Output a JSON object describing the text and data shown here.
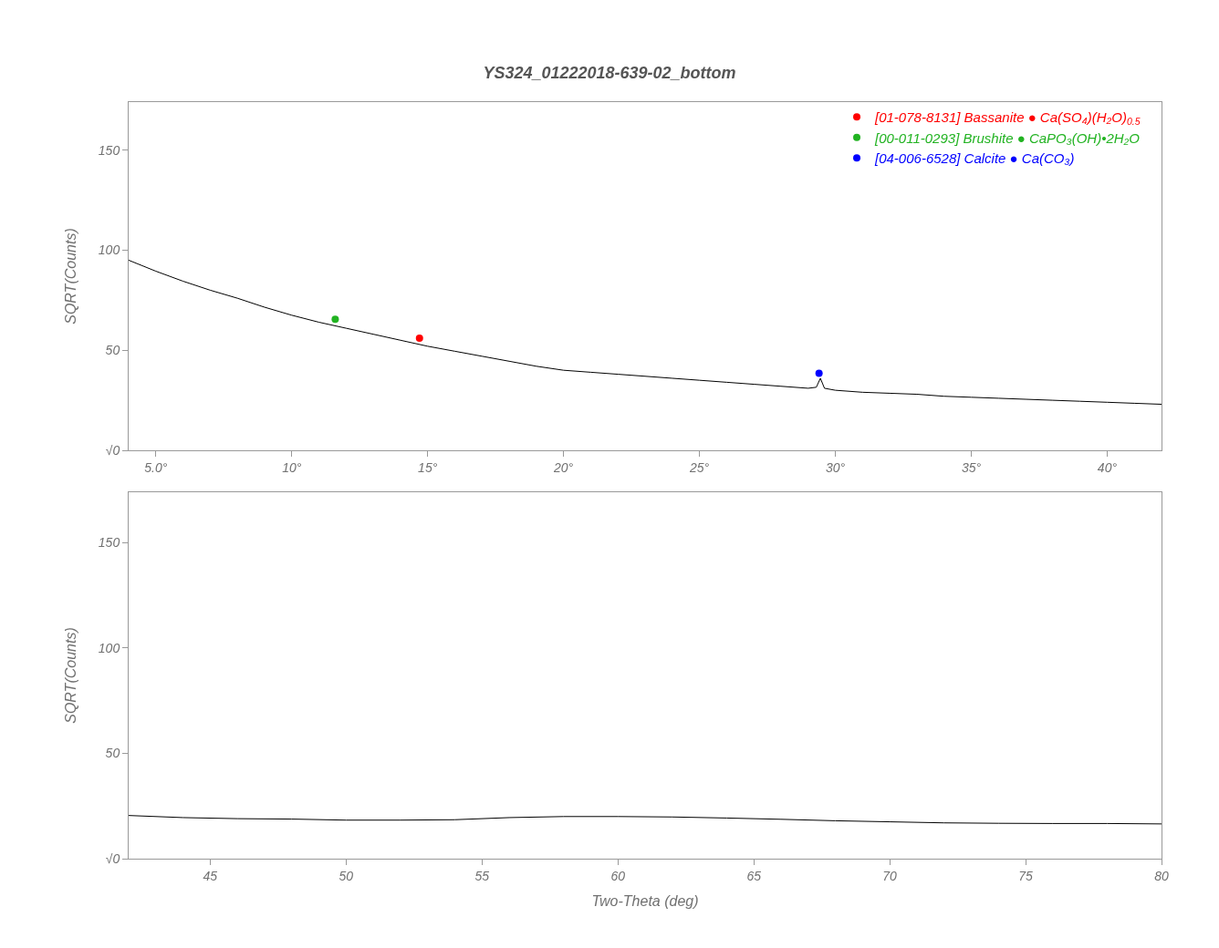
{
  "chart_data": [
    {
      "type": "line",
      "title": "YS324_01222018-639-02_bottom",
      "ylabel": "SQRT(Counts)",
      "xlim": [
        4,
        42
      ],
      "ylim": [
        0,
        174
      ],
      "xticks": [
        {
          "value": 5,
          "label": "5.0°"
        },
        {
          "value": 10,
          "label": "10°"
        },
        {
          "value": 15,
          "label": "15°"
        },
        {
          "value": 20,
          "label": "20°"
        },
        {
          "value": 25,
          "label": "25°"
        },
        {
          "value": 30,
          "label": "30°"
        },
        {
          "value": 35,
          "label": "35°"
        },
        {
          "value": 40,
          "label": "40°"
        }
      ],
      "yticks": [
        {
          "value": 0,
          "label": "√0"
        },
        50,
        100,
        150
      ],
      "legend": "top right",
      "series": [
        {
          "color": "#000000",
          "marker": "none",
          "x": [
            4,
            5,
            6,
            7,
            8,
            9,
            10,
            11,
            12,
            13,
            14,
            15,
            16,
            17,
            18,
            19,
            20,
            21,
            22,
            23,
            24,
            25,
            26,
            27,
            28,
            29,
            29.3,
            29.45,
            29.6,
            30,
            31,
            32,
            33,
            34,
            35,
            36,
            37,
            38,
            39,
            40,
            41,
            42
          ],
          "values": [
            95,
            89.5,
            84.5,
            80,
            76,
            71.5,
            67.5,
            64,
            61,
            58,
            55,
            52,
            49.5,
            47,
            44.5,
            42,
            40,
            39,
            38,
            37,
            36,
            35,
            34,
            33,
            32,
            31,
            31.5,
            36,
            31,
            30,
            29,
            28.5,
            28,
            27,
            26.5,
            26,
            25.5,
            25,
            24.5,
            24,
            23.5,
            23
          ]
        },
        {
          "type": "scatter",
          "name": "[01-078-8131] Bassanite ● Ca(SO₄)(H₂O)$_{0.5}$",
          "color": "#ff0000",
          "marker": "circle",
          "x": [
            14.7
          ],
          "values": [
            56
          ]
        },
        {
          "type": "scatter",
          "name": "[00-011-0293] Brushite ● CaPO₃(OH)•2H₂O",
          "color": "#22b322",
          "marker": "circle",
          "x": [
            11.6
          ],
          "values": [
            65.5
          ]
        },
        {
          "type": "scatter",
          "name": "[04-006-6528] Calcite ● Ca(CO₃)",
          "color": "#0000ff",
          "marker": "circle",
          "x": [
            29.4
          ],
          "values": [
            38.5
          ]
        }
      ]
    },
    {
      "type": "line",
      "xlabel": "Two-Theta (deg)",
      "ylabel": "SQRT(Counts)",
      "xlim": [
        42,
        80
      ],
      "ylim": [
        0,
        174
      ],
      "xticks": [
        45,
        50,
        55,
        60,
        65,
        70,
        75,
        80
      ],
      "yticks": [
        {
          "value": 0,
          "label": "√0"
        },
        50,
        100,
        150
      ],
      "legend": false,
      "series": [
        {
          "color": "#000000",
          "marker": "none",
          "x": [
            42,
            44,
            46,
            48,
            50,
            52,
            54,
            56,
            58,
            60,
            62,
            64,
            66,
            68,
            70,
            72,
            74,
            76,
            78,
            80
          ],
          "values": [
            20.5,
            19.5,
            19,
            18.8,
            18.3,
            18.3,
            18.5,
            19.5,
            20,
            20,
            19.8,
            19.3,
            18.7,
            18,
            17.5,
            17,
            16.8,
            16.7,
            16.7,
            16.5
          ]
        }
      ]
    }
  ]
}
